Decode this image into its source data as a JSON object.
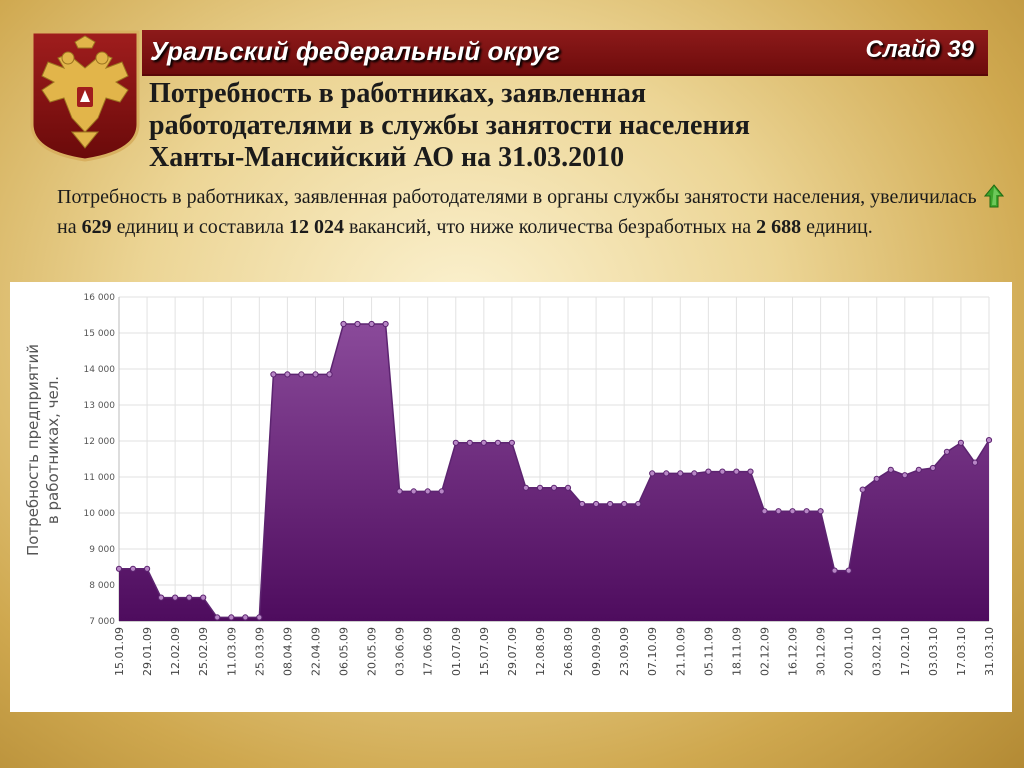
{
  "header": {
    "region": "Уральский федеральный округ",
    "slide": "Слайд 39"
  },
  "title": {
    "line1": "Потребность в работниках, заявленная",
    "line2": "работодателями в службы занятости населения",
    "line3": "Ханты-Мансийский АО на 31.03.2010"
  },
  "paragraph": {
    "p1": "Потребность в работниках, заявленная работодателями в органы службы занятости населения, увеличилась",
    "p2": "на",
    "increase": "629",
    "p3": "единиц и составила",
    "total": "12 024",
    "p4": "вакансий, что ниже количества безработных на",
    "diff": "2 688",
    "p5": "единиц."
  },
  "colors": {
    "fill_top": "#8a4a9a",
    "fill_bottom": "#4e0c5e",
    "line": "#5c2470",
    "banner": "#7a1010",
    "arrow": "#3da52c"
  },
  "icons": {
    "emblem": "russian-coat-of-arms-icon",
    "arrow": "up-arrow-icon"
  },
  "chart_data": {
    "type": "area",
    "ylabel_line1": "Потребность предприятий",
    "ylabel_line2": "в работниках, чел.",
    "ylim": [
      7000,
      16000
    ],
    "yticks": [
      "7 000",
      "8 000",
      "9 000",
      "10 000",
      "11 000",
      "12 000",
      "13 000",
      "14 000",
      "15 000",
      "16 000"
    ],
    "xtick_labels": [
      "15.01.09",
      "29.01.09",
      "12.02.09",
      "25.02.09",
      "11.03.09",
      "25.03.09",
      "08.04.09",
      "22.04.09",
      "06.05.09",
      "20.05.09",
      "03.06.09",
      "17.06.09",
      "01.07.09",
      "15.07.09",
      "29.07.09",
      "12.08.09",
      "26.08.09",
      "09.09.09",
      "23.09.09",
      "07.10.09",
      "21.10.09",
      "05.11.09",
      "18.11.09",
      "02.12.09",
      "16.12.09",
      "30.12.09",
      "20.01.10",
      "03.02.10",
      "17.02.10",
      "03.03.10",
      "17.03.10",
      "31.03.10"
    ],
    "grid": true,
    "series": [
      {
        "values": [
          8450,
          8450,
          8450,
          7650,
          7650,
          7650,
          7650,
          7100,
          7100,
          7100,
          7100,
          13850,
          13850,
          13850,
          13850,
          13850,
          15250,
          15250,
          15250,
          15250,
          10600,
          10600,
          10600,
          10600,
          11950,
          11950,
          11950,
          11950,
          11950,
          10700,
          10700,
          10700,
          10700,
          10250,
          10250,
          10250,
          10250,
          10250,
          11100,
          11100,
          11100,
          11100,
          11150,
          11150,
          11150,
          11150,
          10050,
          10050,
          10050,
          10050,
          10050,
          8400,
          8400,
          10650,
          10950,
          11200,
          11050,
          11200,
          11250,
          11700,
          11950,
          11400,
          12024
        ]
      }
    ]
  }
}
